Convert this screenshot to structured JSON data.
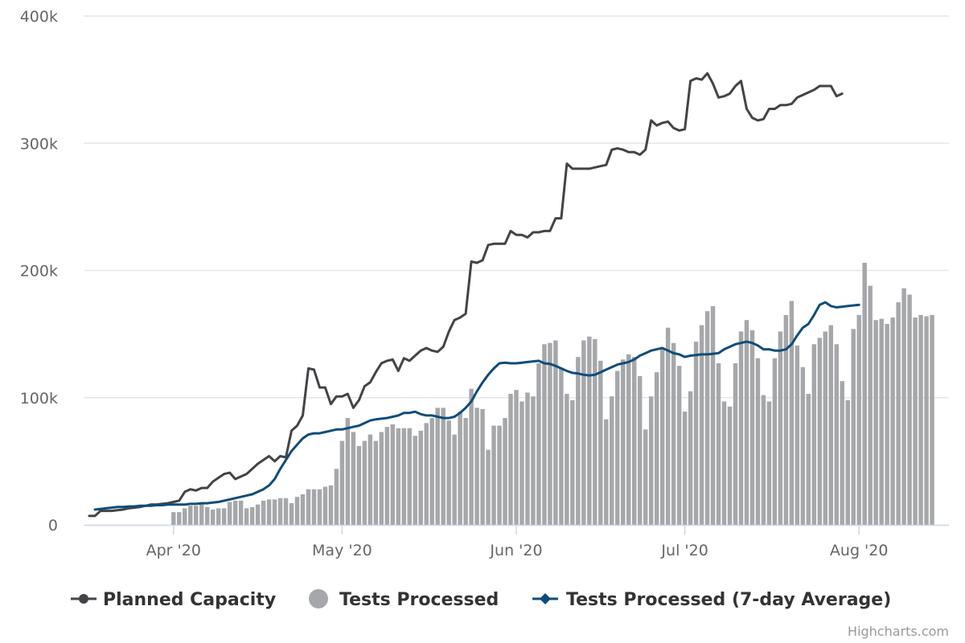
{
  "chart_data": {
    "type": "bar+line",
    "title": "",
    "xlabel": "",
    "ylabel": "",
    "ylim": [
      0,
      400000
    ],
    "y_ticks": [
      {
        "value": 0,
        "label": "0"
      },
      {
        "value": 100000,
        "label": "100k"
      },
      {
        "value": 200000,
        "label": "200k"
      },
      {
        "value": 300000,
        "label": "300k"
      },
      {
        "value": 400000,
        "label": "400k"
      }
    ],
    "x_day_range": [
      -16,
      138
    ],
    "x_ticks": [
      {
        "day": 0,
        "label": "Apr '20"
      },
      {
        "day": 30,
        "label": "May '20"
      },
      {
        "day": 61,
        "label": "Jun '20"
      },
      {
        "day": 91,
        "label": "Jul '20"
      },
      {
        "day": 122,
        "label": "Aug '20"
      }
    ],
    "x_axis_note": "x values are days relative to 1 Apr 2020",
    "series": [
      {
        "name": "Tests Processed",
        "type": "column",
        "color": "#a6a7aa",
        "start_day": 0,
        "values": [
          10000,
          10000,
          13000,
          15000,
          15000,
          17000,
          14000,
          12000,
          13000,
          13000,
          18000,
          19000,
          19000,
          13000,
          14000,
          16000,
          19000,
          20000,
          20000,
          21000,
          21000,
          17000,
          22000,
          24000,
          28000,
          28000,
          28000,
          30000,
          31000,
          44000,
          66000,
          84000,
          73000,
          62000,
          66000,
          71000,
          66000,
          73000,
          77000,
          79000,
          76000,
          76000,
          76000,
          70000,
          74000,
          80000,
          84000,
          92000,
          92000,
          82000,
          71000,
          89000,
          84000,
          107000,
          92000,
          91000,
          59000,
          78000,
          78000,
          84000,
          103000,
          106000,
          97000,
          104000,
          101000,
          127000,
          142000,
          143000,
          145000,
          123000,
          103000,
          98000,
          132000,
          145000,
          148000,
          146000,
          129000,
          83000,
          101000,
          121000,
          130000,
          134000,
          132000,
          117000,
          75000,
          101000,
          120000,
          139000,
          155000,
          143000,
          125000,
          89000,
          105000,
          144000,
          157000,
          168000,
          172000,
          127000,
          97000,
          93000,
          127000,
          152000,
          161000,
          153000,
          131000,
          102000,
          97000,
          131000,
          152000,
          165000,
          176000,
          141000,
          124000,
          103000,
          142000,
          147000,
          152000,
          157000,
          142000,
          113000,
          98000,
          154000,
          165000,
          206000,
          188000,
          161000,
          162000,
          158000,
          163000,
          175000,
          186000,
          181000,
          163000,
          165000,
          164000,
          165000
        ]
      },
      {
        "name": "Tests Processed (7-day Average)",
        "type": "line",
        "color": "#0e4d7a",
        "start_day": -14,
        "values": [
          12000,
          12500,
          13000,
          13500,
          14000,
          14000,
          14500,
          14500,
          15000,
          15000,
          15000,
          15500,
          15500,
          16000,
          16000,
          16000,
          16000,
          16500,
          16500,
          17000,
          17000,
          17500,
          18000,
          19000,
          20000,
          21000,
          22000,
          23000,
          24000,
          26000,
          28000,
          31000,
          36000,
          44000,
          51000,
          58000,
          63000,
          68000,
          71000,
          72000,
          72000,
          73000,
          74000,
          75000,
          75000,
          76000,
          77000,
          78000,
          80000,
          82000,
          83000,
          83500,
          84000,
          85000,
          86000,
          88000,
          88000,
          89000,
          87000,
          86000,
          86000,
          85000,
          84000,
          84000,
          85000,
          88000,
          92000,
          97000,
          105000,
          112000,
          118000,
          123000,
          127000,
          127500,
          127000,
          127000,
          127500,
          128000,
          128500,
          129000,
          127000,
          126500,
          125000,
          123000,
          121000,
          119500,
          119000,
          118000,
          117500,
          118000,
          120000,
          122000,
          124000,
          126000,
          127000,
          128000,
          130000,
          133000,
          135000,
          137000,
          138000,
          139000,
          137000,
          135000,
          134000,
          132000,
          133000,
          133500,
          134000,
          134000,
          134500,
          135000,
          138000,
          140000,
          142000,
          143000,
          144000,
          143000,
          141000,
          138000,
          138000,
          137000,
          137000,
          138000,
          142000,
          149000,
          155000,
          158000,
          165000,
          173000,
          175000,
          172000,
          171000,
          171500,
          172000,
          172500,
          173000
        ]
      },
      {
        "name": "Planned Capacity",
        "type": "line",
        "color": "#434348",
        "start_day": -15,
        "values": [
          7000,
          7000,
          11000,
          11000,
          11000,
          11500,
          12000,
          13000,
          13500,
          14000,
          15000,
          16000,
          16000,
          16500,
          17000,
          18000,
          19000,
          26000,
          28000,
          27000,
          29000,
          29000,
          34000,
          37000,
          40000,
          41000,
          36000,
          38000,
          40000,
          44000,
          48000,
          51000,
          54000,
          50000,
          54000,
          53000,
          74000,
          78000,
          86000,
          123000,
          122000,
          108000,
          108000,
          95000,
          101000,
          101000,
          103000,
          92000,
          98000,
          109000,
          112000,
          120000,
          127000,
          129000,
          130000,
          121000,
          131000,
          129000,
          133000,
          137000,
          139000,
          137000,
          136000,
          140000,
          152000,
          161000,
          163000,
          166000,
          207000,
          206000,
          208000,
          220000,
          221000,
          221000,
          221000,
          231000,
          228000,
          228000,
          226000,
          230000,
          230000,
          231000,
          231000,
          241000,
          241000,
          284000,
          280000,
          280000,
          280000,
          280000,
          281000,
          282000,
          283000,
          295000,
          296000,
          295000,
          293000,
          293000,
          291000,
          295000,
          318000,
          314000,
          316000,
          317000,
          312000,
          310000,
          311000,
          349000,
          351000,
          350000,
          355000,
          347000,
          336000,
          337000,
          339000,
          345000,
          349000,
          327000,
          320000,
          318000,
          319000,
          327000,
          327000,
          330000,
          330000,
          331000,
          336000,
          338000,
          340000,
          342000,
          345000,
          345000,
          345000,
          337000,
          339000
        ]
      }
    ],
    "legend": {
      "position": "bottom-center",
      "items": [
        {
          "label": "Planned Capacity",
          "symbol": "line-circle"
        },
        {
          "label": "Tests Processed",
          "symbol": "circle"
        },
        {
          "label": "Tests Processed (7-day Average)",
          "symbol": "line-diamond"
        }
      ]
    },
    "grid": true
  },
  "credits": "Highcharts.com"
}
